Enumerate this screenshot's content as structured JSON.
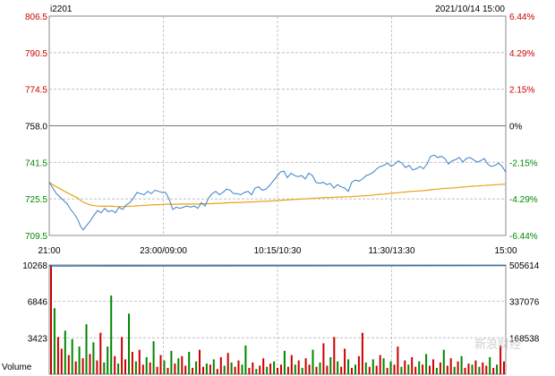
{
  "header": {
    "symbol": "i2201",
    "datetime": "2021/10/14 15:00"
  },
  "colors": {
    "up": "#cc0000",
    "down": "#008800",
    "neutral": "#000000",
    "price_line": "#3a7fc8",
    "avg_line": "#e8a317",
    "oi_line": "#2a6fb8",
    "grid": "#b8b8b8",
    "frame": "#888888"
  },
  "watermark": "新浪财经",
  "chart_data": [
    {
      "type": "line",
      "title": "i2201",
      "y_ticks_left": [
        "806.5",
        "790.5",
        "774.5",
        "758.0",
        "741.5",
        "725.5",
        "709.5"
      ],
      "y_ticks_right": [
        "6.44%",
        "4.29%",
        "2.15%",
        "0%",
        "-2.15%",
        "-4.29%",
        "-6.44%"
      ],
      "x_ticks": [
        "21:00",
        "23:00/09:00",
        "10:15/10:30",
        "11:30/13:30",
        "15:00"
      ],
      "ylim": [
        709.5,
        806.5
      ],
      "reference_price": 758.0,
      "x": [
        0,
        4,
        8,
        12,
        16,
        20,
        24,
        28,
        32,
        35,
        38,
        42,
        46,
        50,
        54,
        58,
        62,
        66,
        70,
        74,
        78,
        82,
        86,
        90,
        94,
        98,
        102,
        106,
        110,
        114,
        118,
        122,
        126,
        130,
        134,
        138,
        142,
        146,
        150,
        154,
        158,
        162,
        166,
        170,
        174,
        178,
        182,
        186,
        190,
        194,
        198,
        202,
        206,
        210,
        214,
        218,
        222,
        226,
        230,
        234,
        238,
        242,
        246,
        250,
        254,
        258,
        262,
        266,
        270,
        274,
        278,
        282,
        286,
        290,
        294,
        298,
        302,
        306,
        310,
        314,
        318,
        322,
        326,
        330,
        334,
        338,
        342,
        346,
        350,
        354,
        358,
        362,
        366,
        370,
        374,
        378,
        382,
        386,
        390,
        394,
        398,
        402,
        406,
        410,
        414,
        418,
        422,
        426,
        430,
        434,
        438,
        442,
        446,
        450,
        454,
        458,
        462,
        466,
        470,
        474,
        478,
        482,
        486,
        490,
        494,
        498,
        502,
        506,
        510
      ],
      "series": [
        {
          "values": [
            733.0,
            730.5,
            728.0,
            726.5,
            725.0,
            723.5,
            721.0,
            719.0,
            716.5,
            713.5,
            712.0,
            714.0,
            716.0,
            718.5,
            720.5,
            719.5,
            721.5,
            720.0,
            720.5,
            719.5,
            722.0,
            721.0,
            723.0,
            724.0,
            726.0,
            728.5,
            728.0,
            727.5,
            729.0,
            728.0,
            729.5,
            729.0,
            728.5,
            728.5,
            725.5,
            721.0,
            722.0,
            721.5,
            722.0,
            722.5,
            722.0,
            722.5,
            721.5,
            724.0,
            722.5,
            726.0,
            728.0,
            729.0,
            727.5,
            728.5,
            730.0,
            729.5,
            728.0,
            728.0,
            727.5,
            728.5,
            729.0,
            727.5,
            730.5,
            731.0,
            729.5,
            730.0,
            731.5,
            733.5,
            735.5,
            737.5,
            738.0,
            735.0,
            737.0,
            736.0,
            735.5,
            736.0,
            734.5,
            737.0,
            736.0,
            733.0,
            732.5,
            733.0,
            732.0,
            732.5,
            730.5,
            732.0,
            731.0,
            730.5,
            729.0,
            733.0,
            734.0,
            733.5,
            734.5,
            736.0,
            736.5,
            737.5,
            739.0,
            740.0,
            740.5,
            741.5,
            740.0,
            741.0,
            742.5,
            741.5,
            739.5,
            740.5,
            738.5,
            739.0,
            740.0,
            739.0,
            741.0,
            744.5,
            745.0,
            744.0,
            744.5,
            743.5,
            741.0,
            742.5,
            743.0,
            744.0,
            742.0,
            743.5,
            744.0,
            743.0,
            742.0,
            742.5,
            743.5,
            741.0,
            740.0,
            740.5,
            741.5,
            740.0,
            737.5
          ]
        },
        {
          "values": [
            733.0,
            732.0,
            731.0,
            730.2,
            729.3,
            728.4,
            727.6,
            726.8,
            726.0,
            725.0,
            724.2,
            723.5,
            723.0,
            722.7,
            722.5,
            722.4,
            722.4,
            722.4,
            722.4,
            722.3,
            722.3,
            722.3,
            722.3,
            722.4,
            722.5,
            722.6,
            722.7,
            722.8,
            722.9,
            723.0,
            723.1,
            723.1,
            723.2,
            723.3,
            723.3,
            723.3,
            723.3,
            723.3,
            723.4,
            723.4,
            723.4,
            723.4,
            723.4,
            723.5,
            723.5,
            723.5,
            723.6,
            723.7,
            723.7,
            723.8,
            723.9,
            724.0,
            724.0,
            724.1,
            724.1,
            724.2,
            724.3,
            724.3,
            724.4,
            724.5,
            724.6,
            724.6,
            724.7,
            724.8,
            724.9,
            725.0,
            725.1,
            725.2,
            725.3,
            725.4,
            725.5,
            725.6,
            725.7,
            725.8,
            725.9,
            726.0,
            726.1,
            726.2,
            726.3,
            726.3,
            726.4,
            726.5,
            726.5,
            726.6,
            726.6,
            726.7,
            726.8,
            726.9,
            727.0,
            727.1,
            727.2,
            727.4,
            727.5,
            727.7,
            727.8,
            728.0,
            728.1,
            728.3,
            728.4,
            728.6,
            728.7,
            728.9,
            729.0,
            729.1,
            729.2,
            729.3,
            729.5,
            729.7,
            729.9,
            730.0,
            730.2,
            730.3,
            730.4,
            730.5,
            730.6,
            730.8,
            730.9,
            731.0,
            731.2,
            731.3,
            731.4,
            731.5,
            731.6,
            731.7,
            731.8,
            731.9,
            732.0,
            732.1,
            732.2
          ]
        }
      ]
    },
    {
      "type": "bar",
      "ylabel": "Volume",
      "y_ticks_left": [
        "10268",
        "6846",
        "3423"
      ],
      "y_ticks_right": [
        "505614",
        "337076",
        "168538"
      ],
      "ylim": [
        0,
        10268
      ],
      "open_interest": {
        "start": 500800,
        "end": 502800
      },
      "series": [
        {
          "name": "volume",
          "values": [
            10268,
            6200,
            3500,
            2400,
            4100,
            1800,
            3300,
            1200,
            2600,
            1500,
            4700,
            1900,
            3000,
            1300,
            3900,
            1100,
            2600,
            7400,
            1700,
            1000,
            3500,
            1400,
            5700,
            2100,
            1200,
            2300,
            900,
            1600,
            1100,
            3100,
            700,
            1800,
            1300,
            600,
            2200,
            1000,
            1500,
            1700,
            800,
            2100,
            600,
            1200,
            2300,
            700,
            1000,
            900,
            1400,
            500,
            1600,
            800,
            2000,
            1100,
            700,
            1300,
            900,
            2700,
            600,
            1100,
            500,
            800,
            1500,
            700,
            1000,
            1200,
            600,
            900,
            2200,
            700,
            1800,
            900,
            1300,
            600,
            1500,
            900,
            2300,
            700,
            1100,
            2900,
            800,
            1600,
            3500,
            1200,
            700,
            2400,
            1400,
            600,
            900,
            1700,
            3900,
            1100,
            700,
            1400,
            800,
            1800,
            1500,
            600,
            1200,
            900,
            2600,
            700,
            1300,
            900,
            1600,
            700,
            1200,
            900,
            1900,
            800,
            1400,
            600,
            1100,
            2300,
            800,
            1500,
            700,
            1200,
            1700,
            600,
            1000,
            900,
            1300,
            700,
            1100,
            800,
            1600,
            600,
            900,
            2700,
            1200
          ],
          "color_flags": [
            "u",
            "d",
            "u",
            "u",
            "d",
            "u",
            "d",
            "u",
            "d",
            "u",
            "d",
            "u",
            "d",
            "u",
            "u",
            "d",
            "d",
            "d",
            "u",
            "d",
            "u",
            "u",
            "d",
            "u",
            "d",
            "u",
            "u",
            "d",
            "u",
            "d",
            "u",
            "u",
            "d",
            "u",
            "d",
            "u",
            "d",
            "u",
            "u",
            "d",
            "u",
            "d",
            "u",
            "u",
            "d",
            "u",
            "d",
            "u",
            "u",
            "d",
            "u",
            "d",
            "u",
            "u",
            "d",
            "d",
            "u",
            "u",
            "d",
            "u",
            "u",
            "d",
            "u",
            "d",
            "u",
            "u",
            "d",
            "u",
            "u",
            "d",
            "u",
            "d",
            "u",
            "u",
            "d",
            "u",
            "d",
            "u",
            "u",
            "d",
            "u",
            "d",
            "u",
            "u",
            "d",
            "u",
            "d",
            "u",
            "u",
            "d",
            "u",
            "d",
            "u",
            "u",
            "d",
            "u",
            "d",
            "u",
            "u",
            "d",
            "u",
            "d",
            "u",
            "u",
            "d",
            "u",
            "d",
            "u",
            "u",
            "d",
            "u",
            "d",
            "u",
            "u",
            "d",
            "u",
            "d",
            "u",
            "u",
            "d",
            "u",
            "d",
            "u",
            "u",
            "d",
            "u",
            "d",
            "u"
          ]
        }
      ]
    }
  ]
}
